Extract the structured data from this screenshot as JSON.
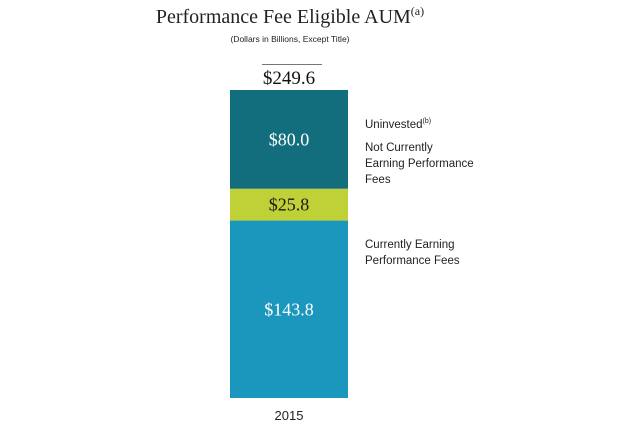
{
  "chart_data": {
    "type": "bar",
    "stacked": true,
    "title": "Performance Fee Eligible AUM",
    "title_sup": "(a)",
    "subtitle": "(Dollars in Billions, Except Title)",
    "categories": [
      "2015"
    ],
    "total_label": "$249.6",
    "total": 249.6,
    "series": [
      {
        "name": "Currently Earning Performance Fees",
        "values": [
          143.8
        ],
        "label": "$143.8",
        "color": "#1b97bd"
      },
      {
        "name": "Not Currently Earning Performance Fees",
        "values": [
          25.8
        ],
        "label": "$25.8",
        "color": "#bfd137"
      },
      {
        "name": "Uninvested",
        "name_sup": "(b)",
        "values": [
          80.0
        ],
        "label": "$80.0",
        "color": "#126e7c"
      }
    ],
    "legend_placement": "right",
    "grid": false
  }
}
